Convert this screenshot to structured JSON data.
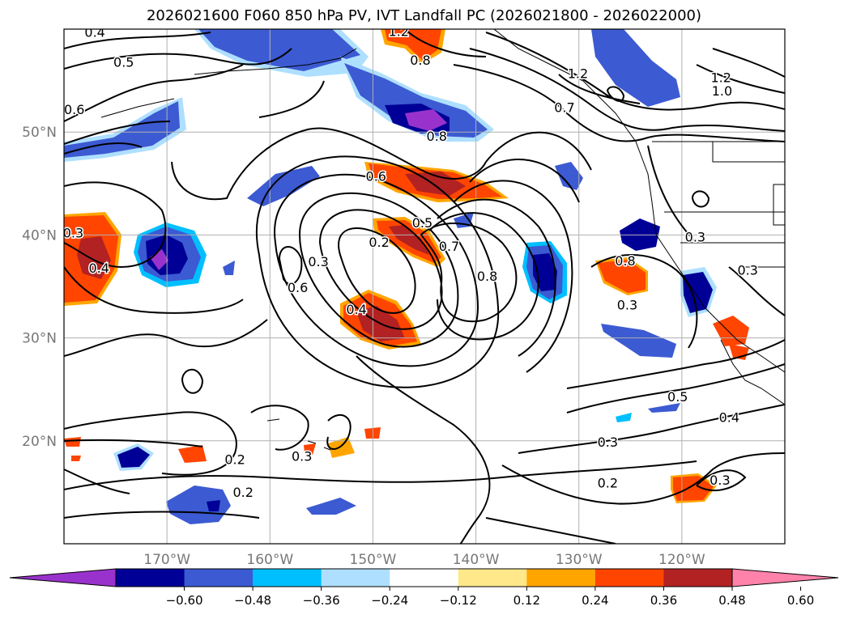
{
  "title": "2026021600 F060 850 hPa PV, IVT Landfall PC (2026021800 - 2026022000)",
  "map": {
    "lat_labels": [
      {
        "lat": 50,
        "text": "50°N"
      },
      {
        "lat": 40,
        "text": "40°N"
      },
      {
        "lat": 30,
        "text": "30°N"
      },
      {
        "lat": 20,
        "text": "20°N"
      }
    ],
    "lon_labels": [
      {
        "lon": -170,
        "text": "170°W"
      },
      {
        "lon": -160,
        "text": "160°W"
      },
      {
        "lon": -150,
        "text": "150°W"
      },
      {
        "lon": -140,
        "text": "140°W"
      },
      {
        "lon": -130,
        "text": "130°W"
      },
      {
        "lon": -120,
        "text": "120°W"
      }
    ],
    "contour_labels": [
      {
        "text": "0.4",
        "lon": -177,
        "lat": 59.6
      },
      {
        "text": "0.5",
        "lon": -174.2,
        "lat": 56.7
      },
      {
        "text": "0.6",
        "lon": -179,
        "lat": 52.1
      },
      {
        "text": "1.2",
        "lon": -147.5,
        "lat": 59.7
      },
      {
        "text": "0.8",
        "lon": -145.4,
        "lat": 56.9
      },
      {
        "text": "0.7",
        "lon": -131.4,
        "lat": 52.3
      },
      {
        "text": "1.2",
        "lon": -130.1,
        "lat": 55.6
      },
      {
        "text": "1.2",
        "lon": -116.2,
        "lat": 55.2
      },
      {
        "text": "1.0",
        "lon": -116.1,
        "lat": 53.9
      },
      {
        "text": "0.8",
        "lon": -143.8,
        "lat": 49.5
      },
      {
        "text": "0.6",
        "lon": -149.7,
        "lat": 45.6
      },
      {
        "text": "0.5",
        "lon": -145.2,
        "lat": 41.1
      },
      {
        "text": "0.2",
        "lon": -149.4,
        "lat": 39.2
      },
      {
        "text": "0.7",
        "lon": -142.6,
        "lat": 38.8
      },
      {
        "text": "0.8",
        "lon": -138.9,
        "lat": 35.9
      },
      {
        "text": "0.3",
        "lon": -155.3,
        "lat": 37.3
      },
      {
        "text": "0.6",
        "lon": -157.3,
        "lat": 34.8
      },
      {
        "text": "0.4",
        "lon": -151.6,
        "lat": 32.7
      },
      {
        "text": "0.3",
        "lon": -179.1,
        "lat": 40.1
      },
      {
        "text": "0.4",
        "lon": -176.6,
        "lat": 36.7
      },
      {
        "text": "0.8",
        "lon": -125.5,
        "lat": 37.4
      },
      {
        "text": "0.3",
        "lon": -125.3,
        "lat": 33.1
      },
      {
        "text": "0.3",
        "lon": -118.7,
        "lat": 39.7
      },
      {
        "text": "0.3",
        "lon": -113.6,
        "lat": 36.5
      },
      {
        "text": "0.5",
        "lon": -120.4,
        "lat": 24.2
      },
      {
        "text": "0.4",
        "lon": -115.4,
        "lat": 22.2
      },
      {
        "text": "0.3",
        "lon": -127.2,
        "lat": 19.8
      },
      {
        "text": "0.2",
        "lon": -127.2,
        "lat": 15.8
      },
      {
        "text": "0.3",
        "lon": -116.3,
        "lat": 16.1
      },
      {
        "text": "0.2",
        "lon": -163.4,
        "lat": 18.1
      },
      {
        "text": "0.3",
        "lon": -156.9,
        "lat": 18.4
      },
      {
        "text": "0.2",
        "lon": -162.6,
        "lat": 14.9
      }
    ]
  },
  "colorbar": {
    "levels": [
      -0.72,
      -0.6,
      -0.48,
      -0.36,
      -0.24,
      -0.12,
      0.12,
      0.24,
      0.36,
      0.48,
      0.6,
      0.72
    ],
    "colors": [
      "#9932cc",
      "#000096",
      "#3c5ad2",
      "#00bfff",
      "#aedfff",
      "#ffffff",
      "#ffe88a",
      "#ffa500",
      "#ff4500",
      "#b22222",
      "#ff82ab"
    ],
    "tick_labels": [
      "−0.60",
      "−0.48",
      "−0.36",
      "−0.24",
      "−0.12",
      "0.12",
      "0.24",
      "0.36",
      "0.48",
      "0.60"
    ]
  }
}
